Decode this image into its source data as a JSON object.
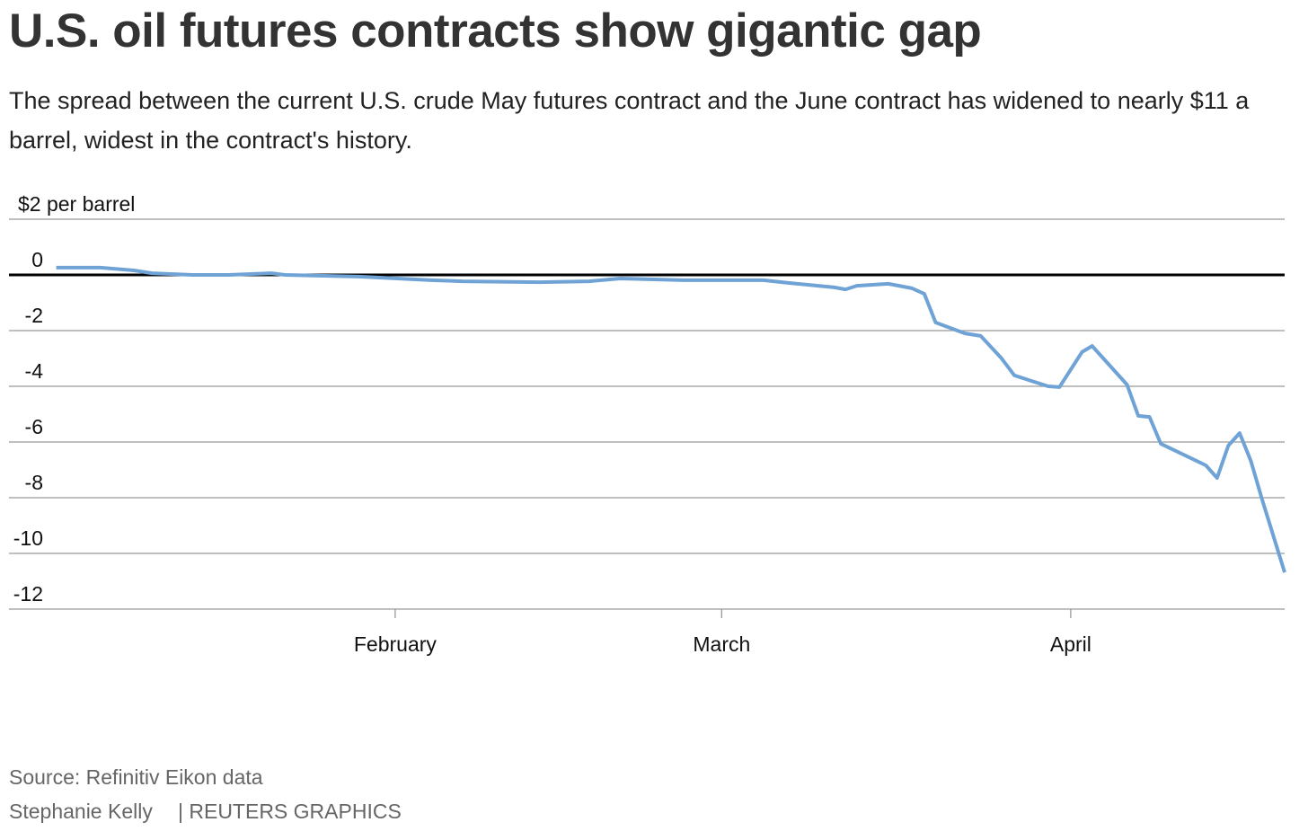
{
  "chart_data": {
    "type": "line",
    "title": "U.S. oil futures contracts show gigantic gap",
    "subtitle": "The spread between the current U.S. crude May futures contract and the June contract has widened to nearly $11 a barrel, widest in the contract's history.",
    "source": "Source: Refinitiv Eikon data",
    "credit": "Stephanie Kelly",
    "publisher": "| REUTERS GRAPHICS",
    "x": [
      1.9,
      5.8,
      8.8,
      10.4,
      14,
      17.2,
      21,
      22.2,
      28.8,
      35.2,
      38,
      44.8,
      49.2,
      52,
      57.6,
      64.7,
      67,
      71,
      72,
      73,
      75.8,
      77.9,
      79,
      80,
      82.6,
      84,
      85.8,
      87,
      90,
      91,
      93,
      93.9,
      97,
      98,
      99,
      100,
      104,
      105,
      106,
      107,
      108,
      109,
      111
    ],
    "series": [
      {
        "color": "#6fa3d6",
        "values": [
          0.26,
          0.26,
          0.16,
          0.06,
          0,
          0,
          0.06,
          0,
          -0.06,
          -0.19,
          -0.23,
          -0.26,
          -0.23,
          -0.13,
          -0.19,
          -0.19,
          -0.29,
          -0.45,
          -0.52,
          -0.39,
          -0.32,
          -0.48,
          -0.68,
          -1.71,
          -2.1,
          -2.19,
          -2.97,
          -3.61,
          -4.0,
          -4.03,
          -2.77,
          -2.55,
          -3.94,
          -5.06,
          -5.1,
          -6.06,
          -6.84,
          -7.29,
          -6.13,
          -5.68,
          -6.68,
          -8.06,
          -10.68
        ]
      }
    ],
    "xlim": [
      -2.3,
      111
    ],
    "xticks": [
      {
        "value": 32,
        "label": "February"
      },
      {
        "value": 61,
        "label": "March"
      },
      {
        "value": 92,
        "label": "April"
      }
    ],
    "ylim": [
      -12,
      2
    ],
    "yticks": [
      {
        "value": 2,
        "label": "$2 per barrel"
      },
      0,
      -2,
      -4,
      -6,
      -8,
      -10,
      -12
    ],
    "grid": true
  }
}
